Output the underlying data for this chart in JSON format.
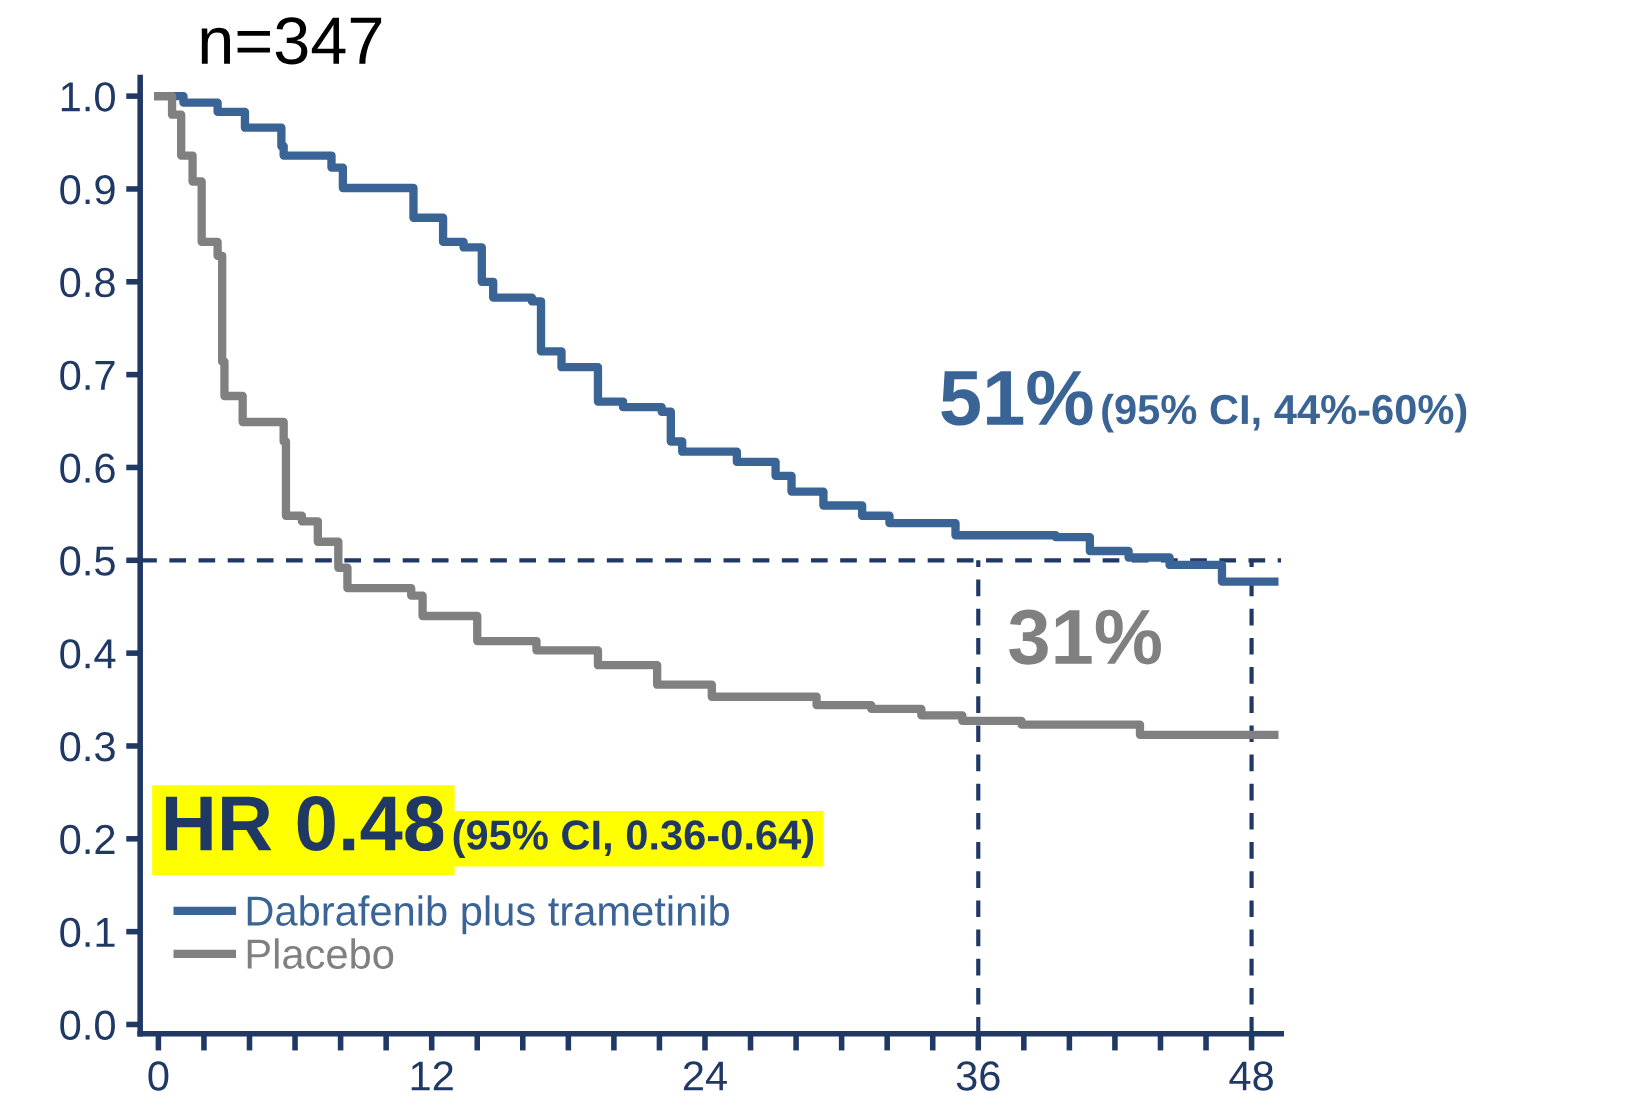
{
  "chart_data": {
    "type": "step",
    "title": "n=347",
    "xlim": [
      -0.8,
      49.3
    ],
    "ylim": [
      -0.01,
      1.02
    ],
    "xticks": [
      0,
      {
        "value": 2,
        "label": null
      },
      {
        "value": 4,
        "label": null
      },
      {
        "value": 6,
        "label": null
      },
      {
        "value": 8,
        "label": null
      },
      {
        "value": 10,
        "label": null
      },
      12,
      {
        "value": 14,
        "label": null
      },
      {
        "value": 16,
        "label": null
      },
      {
        "value": 18,
        "label": null
      },
      {
        "value": 20,
        "label": null
      },
      {
        "value": 22,
        "label": null
      },
      24,
      {
        "value": 26,
        "label": null
      },
      {
        "value": 28,
        "label": null
      },
      {
        "value": 30,
        "label": null
      },
      {
        "value": 32,
        "label": null
      },
      {
        "value": 34,
        "label": null
      },
      36,
      {
        "value": 38,
        "label": null
      },
      {
        "value": 40,
        "label": null
      },
      {
        "value": 42,
        "label": null
      },
      {
        "value": 44,
        "label": null
      },
      {
        "value": 46,
        "label": null
      },
      48
    ],
    "yticks": [
      {
        "value": 0,
        "label": "0.0"
      },
      0.1,
      0.2,
      0.3,
      0.4,
      0.5,
      0.6,
      0.7,
      0.8,
      0.9,
      {
        "value": 1,
        "label": "1.0"
      }
    ],
    "grid": false,
    "legend": "bottom left",
    "marker": "none",
    "line_style": "solid",
    "series": [
      {
        "name": "Dabrafenib plus trametinib",
        "color": "#3a6496",
        "x": [
          0,
          1.1,
          2.6,
          3.8,
          5.4,
          5.5,
          7.6,
          8.1,
          10.9,
          11.2,
          12.5,
          13.4,
          14.2,
          14.7,
          16.4,
          16.8,
          17.7,
          19.3,
          20.4,
          22.1,
          22.5,
          23.0,
          25.4,
          27.1,
          27.8,
          29.2,
          30.9,
          32.1,
          35.0,
          39.4,
          40.9,
          42.6,
          44.4,
          46.7,
          49.0
        ],
        "values": [
          1.0,
          0.993,
          0.983,
          0.966,
          0.946,
          0.936,
          0.923,
          0.901,
          0.901,
          0.869,
          0.843,
          0.837,
          0.8,
          0.783,
          0.779,
          0.725,
          0.708,
          0.671,
          0.665,
          0.66,
          0.628,
          0.617,
          0.606,
          0.591,
          0.574,
          0.559,
          0.548,
          0.54,
          0.527,
          0.525,
          0.51,
          0.503,
          0.495,
          0.477,
          0.477
        ]
      },
      {
        "name": "Placebo",
        "color": "#808080",
        "x": [
          0,
          0.6,
          1.0,
          1.5,
          1.9,
          2.6,
          2.8,
          2.9,
          3.7,
          5.5,
          5.6,
          6.3,
          7.0,
          7.9,
          8.3,
          11.1,
          11.6,
          14.0,
          16.6,
          19.3,
          21.9,
          24.3,
          28.9,
          31.3,
          33.5,
          35.3,
          37.9,
          43.1,
          49.0
        ],
        "values": [
          1.0,
          0.98,
          0.936,
          0.908,
          0.843,
          0.828,
          0.714,
          0.677,
          0.649,
          0.628,
          0.548,
          0.542,
          0.52,
          0.492,
          0.47,
          0.462,
          0.44,
          0.413,
          0.403,
          0.387,
          0.366,
          0.353,
          0.344,
          0.34,
          0.333,
          0.327,
          0.323,
          0.312,
          0.312
        ]
      }
    ],
    "ref_lines": [
      {
        "axis": "y",
        "value": 0.5,
        "color": "#1f3864",
        "line_style": "dashed"
      },
      {
        "axis": "x",
        "value": 36,
        "color": "#1f3864",
        "line_style": "dashed"
      },
      {
        "axis": "x",
        "value": 48,
        "color": "#1f3864",
        "line_style": "dashed"
      }
    ],
    "annotations": [
      "51%",
      "(95% CI, 44%-60%)",
      "31%",
      "HR 0.48",
      "(95% CI, 0.36-0.64)"
    ]
  }
}
